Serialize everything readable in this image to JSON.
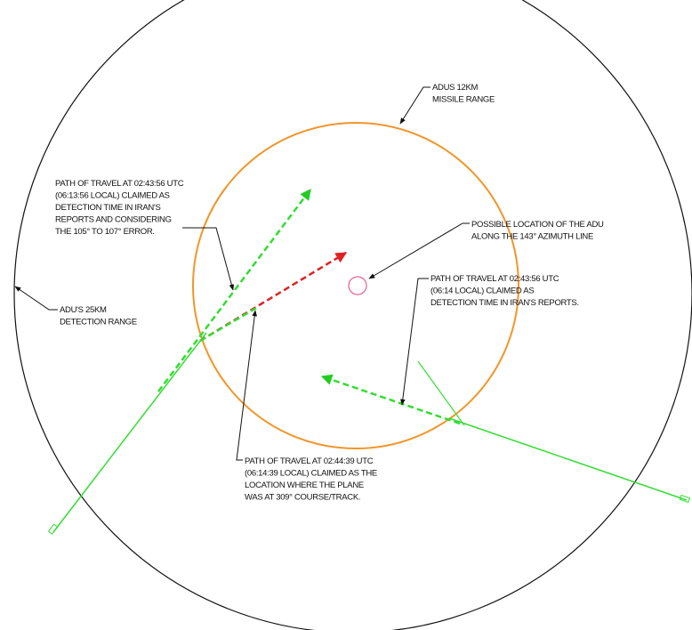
{
  "annotations": [
    {
      "lines": [
        "ADUS 12KM",
        "MISSILE RANGE"
      ]
    },
    {
      "lines": [
        "PATH OF TRAVEL AT 02:43:56 UTC",
        "(06:13:56 LOCAL) CLAIMED AS",
        "DETECTION TIME IN IRAN'S",
        "REPORTS AND CONSIDERING",
        "THE 105° TO 107° ERROR."
      ]
    },
    {
      "lines": [
        "POSSIBLE LOCATION OF THE ADU",
        "ALONG THE 143° AZIMUTH LINE"
      ]
    },
    {
      "lines": [
        "PATH OF TRAVEL AT 02:43:56 UTC",
        "(06:14 LOCAL) CLAIMED AS",
        "DETECTION TIME IN IRAN'S REPORTS."
      ]
    },
    {
      "lines": [
        "ADU'S 25KM",
        "DETECTION RANGE"
      ]
    },
    {
      "lines": [
        "PATH OF TRAVEL AT 02:44:39 UTC",
        "(06:14:39 LOCAL) CLAIMED AS THE",
        "LOCATION WHERE THE PLANE",
        "WAS AT 309° COURSE/TRACK."
      ]
    }
  ]
}
